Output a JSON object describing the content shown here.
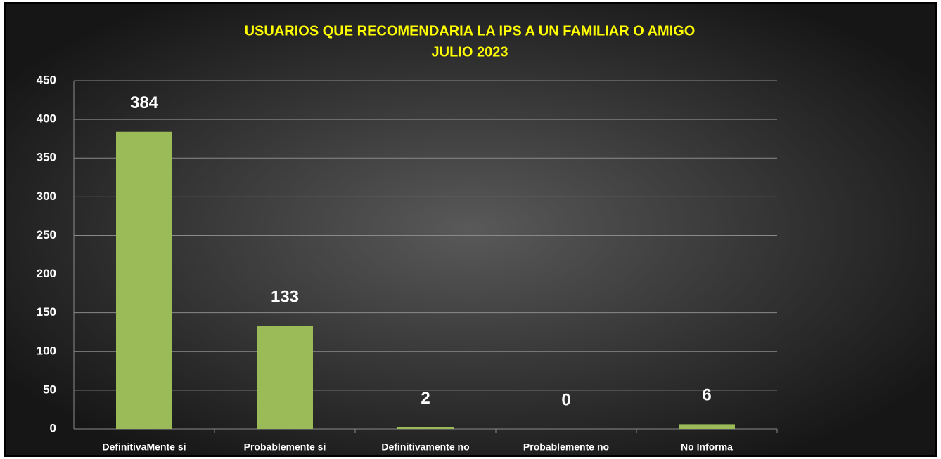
{
  "chart_data": {
    "type": "bar",
    "title": "USUARIOS QUE RECOMENDARIA  LA IPS A UN FAMILIAR O AMIGO",
    "subtitle": "JULIO 2023",
    "categories": [
      "DefinitivaMente si",
      "Probablemente si",
      "Definitivamente no",
      "Probablemente no",
      "No Informa"
    ],
    "values": [
      384,
      133,
      2,
      0,
      6
    ],
    "color": "#9bbb59",
    "ylim": [
      0,
      450
    ],
    "yticks": [
      0,
      50,
      100,
      150,
      200,
      250,
      300,
      350,
      400,
      450
    ],
    "grid": true
  }
}
